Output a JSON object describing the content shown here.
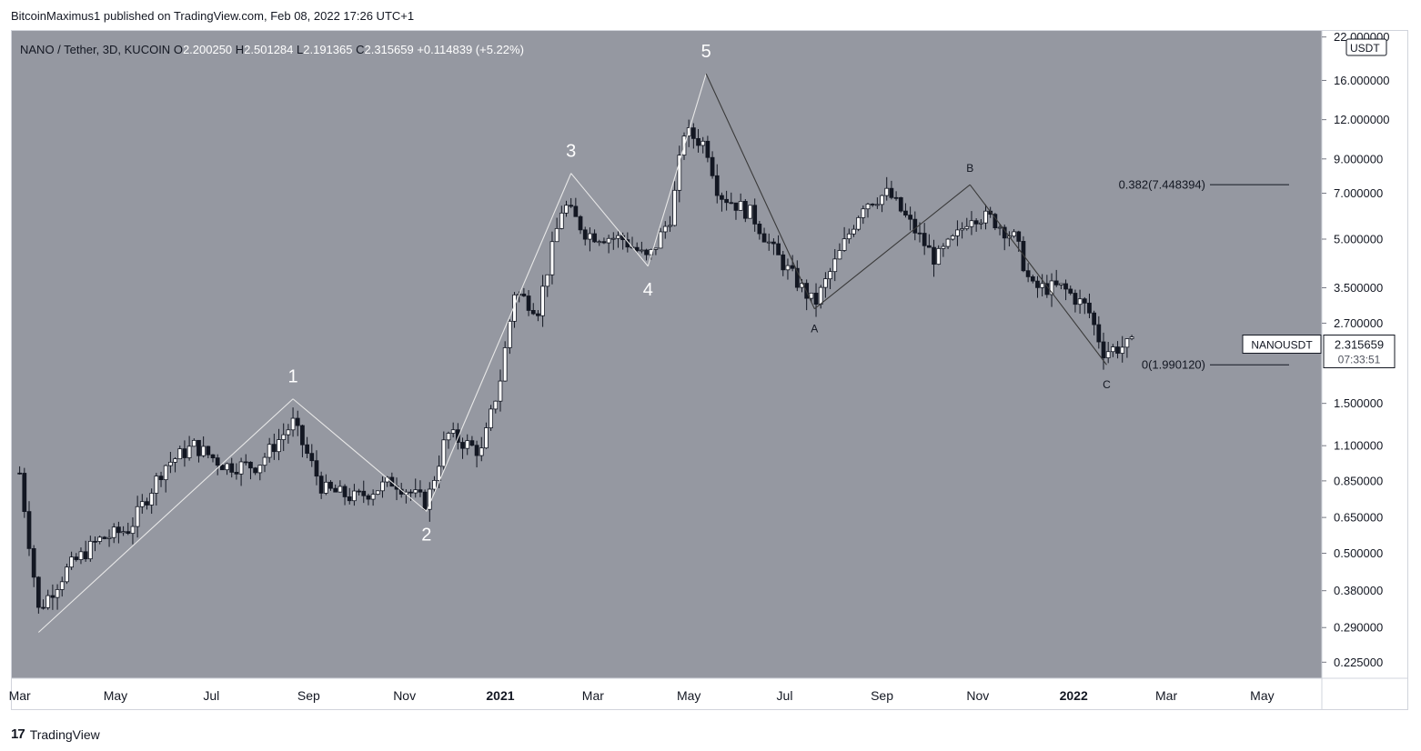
{
  "header": {
    "publisher": "BitcoinMaximus1 published on TradingView.com, Feb 08, 2022 17:26 UTC+1"
  },
  "footer": {
    "brand": "TradingView"
  },
  "chart_data": {
    "type": "candlestick",
    "title": "NANO / Tether, 3D, KUCOIN",
    "ohlc": {
      "O_label": "O",
      "O": "2.200250",
      "H_label": "H",
      "H": "2.501284",
      "L_label": "L",
      "L": "2.191365",
      "C_label": "C",
      "C": "2.315659",
      "change": "+0.114839 (+5.22%)"
    },
    "currency": "USDT",
    "y_scale": "log",
    "y_ticks": [
      "22.000000",
      "16.000000",
      "12.000000",
      "9.000000",
      "7.000000",
      "5.000000",
      "3.500000",
      "2.700000",
      "1.500000",
      "1.100000",
      "0.850000",
      "0.650000",
      "0.500000",
      "0.380000",
      "0.290000",
      "0.225000"
    ],
    "x_ticks": [
      "Mar",
      "May",
      "Jul",
      "Sep",
      "Nov",
      "2021",
      "Mar",
      "May",
      "Jul",
      "Sep",
      "Nov",
      "2022",
      "Mar",
      "May"
    ],
    "x_ticks_bold": [
      false,
      false,
      false,
      false,
      false,
      true,
      false,
      false,
      false,
      false,
      false,
      true,
      false,
      false
    ],
    "ylim": [
      0.2,
      23
    ],
    "last_price": {
      "symbol": "NANOUSDT",
      "price": "2.315659",
      "countdown": "07:33:51"
    },
    "fib_levels": [
      {
        "label": "0.382(7.448394)",
        "value": 7.448394
      },
      {
        "label": "0(1.990120)",
        "value": 1.99012
      }
    ],
    "waves": [
      {
        "label": "1",
        "date": "2020-08-22",
        "price": 1.55
      },
      {
        "label": "2",
        "date": "2020-11-15",
        "price": 0.68
      },
      {
        "label": "3",
        "date": "2021-02-15",
        "price": 8.1
      },
      {
        "label": "4",
        "date": "2021-04-05",
        "price": 4.1
      },
      {
        "label": "5",
        "date": "2021-05-12",
        "price": 16.8
      },
      {
        "label": "A",
        "date": "2021-07-20",
        "price": 3.0
      },
      {
        "label": "B",
        "date": "2021-10-27",
        "price": 7.45
      },
      {
        "label": "C",
        "date": "2022-01-22",
        "price": 1.99
      }
    ],
    "wave_lines": [
      {
        "from": [
          "2020-03-13",
          0.28
        ],
        "to": [
          "2020-08-22",
          1.55
        ],
        "color": "#e8e8e8"
      },
      {
        "from": [
          "2020-08-22",
          1.55
        ],
        "to": [
          "2020-11-15",
          0.68
        ],
        "color": "#e8e8e8"
      },
      {
        "from": [
          "2020-11-15",
          0.68
        ],
        "to": [
          "2021-02-15",
          8.1
        ],
        "color": "#e8e8e8"
      },
      {
        "from": [
          "2021-02-15",
          8.1
        ],
        "to": [
          "2021-04-05",
          4.1
        ],
        "color": "#e8e8e8"
      },
      {
        "from": [
          "2021-04-05",
          4.1
        ],
        "to": [
          "2021-05-12",
          16.8
        ],
        "color": "#e8e8e8"
      },
      {
        "from": [
          "2021-05-12",
          16.8
        ],
        "to": [
          "2021-07-20",
          3.0
        ],
        "color": "#3a3a3a"
      },
      {
        "from": [
          "2021-07-20",
          3.0
        ],
        "to": [
          "2021-10-27",
          7.45
        ],
        "color": "#3a3a3a"
      },
      {
        "from": [
          "2021-10-27",
          7.45
        ],
        "to": [
          "2022-01-22",
          1.99
        ],
        "color": "#3a3a3a"
      }
    ],
    "series": [
      {
        "date": "2020-03-01",
        "close": 0.9
      },
      {
        "date": "2020-03-13",
        "close": 0.33
      },
      {
        "date": "2020-04-01",
        "close": 0.45
      },
      {
        "date": "2020-04-20",
        "close": 0.55
      },
      {
        "date": "2020-05-10",
        "close": 0.6
      },
      {
        "date": "2020-06-01",
        "close": 0.95
      },
      {
        "date": "2020-06-20",
        "close": 1.1
      },
      {
        "date": "2020-07-10",
        "close": 0.95
      },
      {
        "date": "2020-07-30",
        "close": 0.95
      },
      {
        "date": "2020-08-22",
        "close": 1.3
      },
      {
        "date": "2020-09-10",
        "close": 0.8
      },
      {
        "date": "2020-10-01",
        "close": 0.75
      },
      {
        "date": "2020-10-25",
        "close": 0.85
      },
      {
        "date": "2020-11-15",
        "close": 0.72
      },
      {
        "date": "2020-11-28",
        "close": 1.2
      },
      {
        "date": "2020-12-20",
        "close": 1.05
      },
      {
        "date": "2021-01-01",
        "close": 1.8
      },
      {
        "date": "2021-01-10",
        "close": 3.4
      },
      {
        "date": "2021-01-25",
        "close": 3.0
      },
      {
        "date": "2021-02-10",
        "close": 6.5
      },
      {
        "date": "2021-02-25",
        "close": 5.2
      },
      {
        "date": "2021-03-20",
        "close": 5.0
      },
      {
        "date": "2021-04-05",
        "close": 4.3
      },
      {
        "date": "2021-04-20",
        "close": 6.0
      },
      {
        "date": "2021-04-28",
        "close": 11.0
      },
      {
        "date": "2021-05-12",
        "close": 10.0
      },
      {
        "date": "2021-05-20",
        "close": 7.0
      },
      {
        "date": "2021-06-10",
        "close": 6.0
      },
      {
        "date": "2021-06-25",
        "close": 4.5
      },
      {
        "date": "2021-07-20",
        "close": 3.1
      },
      {
        "date": "2021-08-05",
        "close": 4.5
      },
      {
        "date": "2021-08-20",
        "close": 6.5
      },
      {
        "date": "2021-09-05",
        "close": 7.0
      },
      {
        "date": "2021-09-20",
        "close": 5.5
      },
      {
        "date": "2021-10-05",
        "close": 4.3
      },
      {
        "date": "2021-10-20",
        "close": 5.2
      },
      {
        "date": "2021-10-27",
        "close": 6.0
      },
      {
        "date": "2021-11-10",
        "close": 5.8
      },
      {
        "date": "2021-11-25",
        "close": 5.0
      },
      {
        "date": "2021-12-05",
        "close": 3.5
      },
      {
        "date": "2021-12-25",
        "close": 3.5
      },
      {
        "date": "2022-01-10",
        "close": 3.0
      },
      {
        "date": "2022-01-20",
        "close": 2.2
      },
      {
        "date": "2022-02-08",
        "close": 2.315659
      }
    ]
  }
}
